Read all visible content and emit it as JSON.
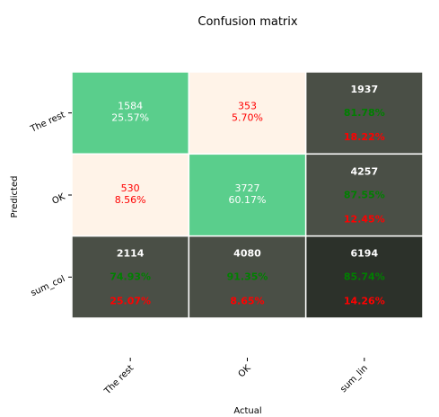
{
  "chart_data": {
    "type": "heatmap",
    "title": "Confusion matrix",
    "xlabel": "Actual",
    "ylabel": "Predicted",
    "x_categories": [
      "The rest",
      "OK",
      "sum_lin"
    ],
    "y_categories": [
      "The rest",
      "OK",
      "sum_col"
    ],
    "grid": false,
    "cells": [
      [
        {
          "count": "1584",
          "percent": "25.57%",
          "kind": "correct"
        },
        {
          "count": "353",
          "percent": "5.70%",
          "kind": "error"
        },
        {
          "count": "1937",
          "good": "81.78%",
          "bad": "18.22%",
          "kind": "sum"
        }
      ],
      [
        {
          "count": "530",
          "percent": "8.56%",
          "kind": "error"
        },
        {
          "count": "3727",
          "percent": "60.17%",
          "kind": "correct"
        },
        {
          "count": "4257",
          "good": "87.55%",
          "bad": "12.45%",
          "kind": "sum"
        }
      ],
      [
        {
          "count": "2114",
          "good": "74.93%",
          "bad": "25.07%",
          "kind": "sum"
        },
        {
          "count": "4080",
          "good": "91.35%",
          "bad": "8.65%",
          "kind": "sum"
        },
        {
          "count": "6194",
          "good": "85.74%",
          "bad": "14.26%",
          "kind": "total"
        }
      ]
    ]
  },
  "colors": {
    "correct_bg": "#5ace8c",
    "error_bg": "#fff3e8",
    "sum_bg": "#4a4f46",
    "total_bg": "#2c312a",
    "correct_text": "#ffffff",
    "error_text": "#ff0000",
    "sum_count_text": "#ffffff",
    "good_text": "#008000",
    "bad_text": "#ff0000"
  }
}
